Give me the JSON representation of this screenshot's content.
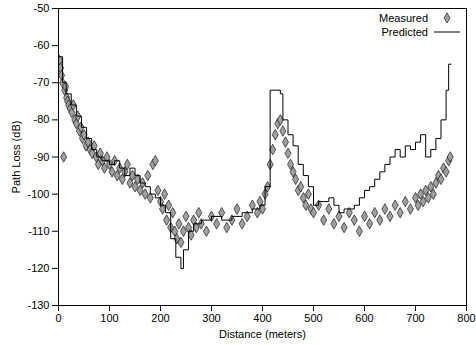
{
  "chart_data": {
    "type": "scatter",
    "x_label": "Distance (meters)",
    "y_label": "Path Loss (dB)",
    "xlim": [
      0,
      800
    ],
    "xticks": [
      0,
      100,
      200,
      300,
      400,
      500,
      600,
      700,
      800
    ],
    "ylim": [
      -130,
      -50
    ],
    "yticks": [
      -130,
      -120,
      -110,
      -100,
      -90,
      -80,
      -70,
      -60,
      -50
    ],
    "grid": false,
    "legend": "top-right",
    "series": [
      {
        "name": "Measured",
        "type": "scatter",
        "marker": "diamond",
        "color": "#a0a0a0",
        "x": [
          2,
          4,
          6,
          8,
          10,
          12,
          14,
          16,
          18,
          20,
          23,
          26,
          29,
          32,
          35,
          38,
          41,
          44,
          47,
          50,
          54,
          58,
          62,
          66,
          70,
          74,
          78,
          82,
          86,
          90,
          95,
          100,
          105,
          110,
          115,
          120,
          125,
          130,
          135,
          140,
          145,
          150,
          155,
          160,
          165,
          170,
          175,
          180,
          185,
          190,
          195,
          200,
          204,
          208,
          212,
          216,
          220,
          224,
          228,
          232,
          236,
          240,
          245,
          250,
          255,
          260,
          265,
          270,
          275,
          280,
          290,
          300,
          310,
          320,
          330,
          340,
          350,
          360,
          370,
          380,
          390,
          395,
          400,
          405,
          410,
          415,
          420,
          425,
          430,
          435,
          440,
          445,
          450,
          455,
          460,
          465,
          470,
          475,
          480,
          485,
          490,
          495,
          500,
          510,
          520,
          530,
          540,
          550,
          560,
          570,
          580,
          590,
          600,
          610,
          620,
          630,
          640,
          650,
          660,
          670,
          680,
          690,
          700,
          705,
          710,
          715,
          720,
          725,
          730,
          735,
          740,
          745,
          750,
          755,
          760,
          765,
          768
        ],
        "values": [
          -64,
          -66,
          -68,
          -70,
          -90,
          -72,
          -71,
          -74,
          -75,
          -76,
          -77,
          -78,
          -76,
          -80,
          -81,
          -79,
          -83,
          -82,
          -85,
          -84,
          -87,
          -86,
          -88,
          -89,
          -87,
          -90,
          -92,
          -89,
          -91,
          -93,
          -90,
          -92,
          -94,
          -91,
          -95,
          -93,
          -96,
          -94,
          -92,
          -97,
          -95,
          -98,
          -96,
          -99,
          -97,
          -100,
          -95,
          -101,
          -92,
          -91,
          -99,
          -102,
          -104,
          -100,
          -107,
          -103,
          -109,
          -105,
          -110,
          -112,
          -108,
          -113,
          -110,
          -106,
          -109,
          -111,
          -107,
          -109,
          -105,
          -108,
          -110,
          -106,
          -108,
          -105,
          -109,
          -107,
          -104,
          -108,
          -106,
          -103,
          -105,
          -102,
          -104,
          -100,
          -98,
          -92,
          -88,
          -84,
          -81,
          -80,
          -83,
          -86,
          -89,
          -92,
          -94,
          -96,
          -99,
          -98,
          -101,
          -103,
          -100,
          -104,
          -105,
          -103,
          -107,
          -104,
          -108,
          -106,
          -109,
          -105,
          -107,
          -110,
          -106,
          -108,
          -105,
          -107,
          -104,
          -106,
          -103,
          -105,
          -102,
          -104,
          -101,
          -103,
          -100,
          -102,
          -99,
          -101,
          -98,
          -100,
          -97,
          -95,
          -96,
          -93,
          -94,
          -91,
          -90
        ]
      },
      {
        "name": "Predicted",
        "type": "line",
        "line_style": "step",
        "color": "#000000",
        "x": [
          0,
          8,
          15,
          25,
          35,
          45,
          55,
          65,
          75,
          85,
          100,
          110,
          120,
          130,
          140,
          150,
          160,
          170,
          180,
          190,
          200,
          210,
          220,
          230,
          240,
          245,
          255,
          265,
          280,
          300,
          320,
          340,
          360,
          380,
          395,
          405,
          415,
          425,
          435,
          440,
          450,
          460,
          470,
          480,
          490,
          500,
          510,
          520,
          530,
          540,
          550,
          560,
          570,
          580,
          590,
          600,
          610,
          620,
          630,
          640,
          650,
          660,
          670,
          680,
          690,
          700,
          710,
          720,
          730,
          740,
          750,
          760,
          765,
          770
        ],
        "values": [
          -63,
          -70,
          -73,
          -76,
          -79,
          -82,
          -85,
          -88,
          -90,
          -91,
          -92,
          -91,
          -93,
          -95,
          -93,
          -95,
          -97,
          -98,
          -100,
          -101,
          -103,
          -105,
          -112,
          -117,
          -120,
          -115,
          -110,
          -108,
          -107,
          -106,
          -107,
          -106,
          -105,
          -104,
          -103,
          -98,
          -72,
          -72,
          -73,
          -80,
          -84,
          -87,
          -92,
          -95,
          -98,
          -103,
          -102,
          -102,
          -101,
          -103,
          -105,
          -104,
          -104,
          -103,
          -101,
          -99,
          -98,
          -96,
          -94,
          -92,
          -90,
          -88,
          -90,
          -87,
          -88,
          -86,
          -84,
          -90,
          -88,
          -85,
          -80,
          -72,
          -65,
          -65
        ]
      }
    ]
  }
}
